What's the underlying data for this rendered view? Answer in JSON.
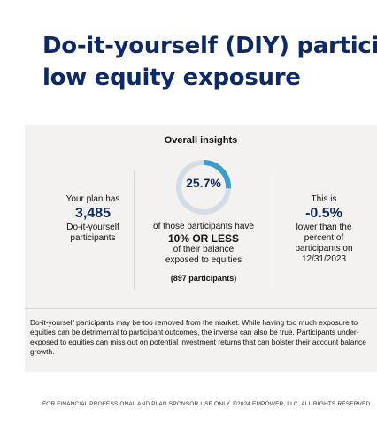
{
  "title": {
    "line1": "Do-it-yourself (DIY) partici",
    "line2": "low equity exposure"
  },
  "card": {
    "title": "Overall insights",
    "left": {
      "line1": "Your plan has",
      "number": "3,485",
      "line2": "Do-it-yourself",
      "line3": "participants"
    },
    "middle": {
      "percent": "25.7%",
      "percent_value": 0.257,
      "line1": "of those participants have",
      "highlight": "10% OR LESS",
      "line2": "of their balance",
      "line3": "exposed to equities",
      "count": "(897 participants)"
    },
    "right": {
      "line1": "This is",
      "number": "-0.5%",
      "line2": "lower than the",
      "line3": "percent of",
      "line4": "participants on",
      "line5": "12/31/2023"
    },
    "note": "Do-it-yourself participants may be too removed from the market. While having too much exposure to equities can be detrimental to participant outcomes, the inverse can also be true. Participants under-exposed to equities can miss out on potential investment returns that can bolster their account balance growth."
  },
  "footer": "FOR FINANCIAL PROFESSIONAL AND PLAN SPONSOR USE ONLY. ©2024 EMPOWER, LLC. ALL RIGHTS RESERVED.",
  "colors": {
    "title": "#0d2a66",
    "donut_fill": "#3d9cc9",
    "donut_track": "#d4dde5",
    "card_bg": "#f3f2f0"
  }
}
